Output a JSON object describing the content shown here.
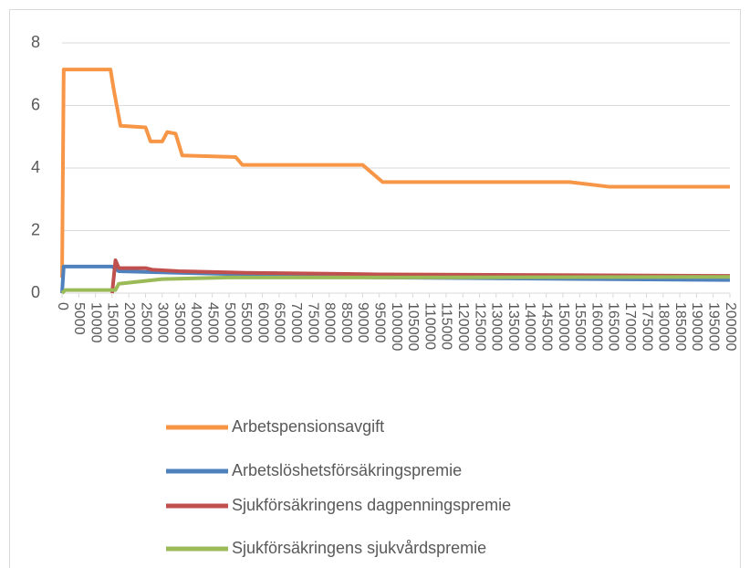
{
  "chart_data": {
    "type": "line",
    "xlim": [
      0,
      200000
    ],
    "xticks": [
      0,
      5000,
      10000,
      15000,
      20000,
      25000,
      30000,
      35000,
      40000,
      45000,
      50000,
      55000,
      60000,
      65000,
      70000,
      75000,
      80000,
      85000,
      90000,
      95000,
      100000,
      105000,
      110000,
      115000,
      120000,
      125000,
      130000,
      135000,
      140000,
      145000,
      150000,
      155000,
      160000,
      165000,
      170000,
      175000,
      180000,
      185000,
      190000,
      195000,
      200000
    ],
    "ylim": [
      0,
      8
    ],
    "yticks": [
      0,
      2,
      4,
      6,
      8
    ],
    "grid": true,
    "legend": "bottom",
    "series": [
      {
        "name": "Arbetspensionsavgift",
        "color": "#f79646",
        "x": [
          0,
          500,
          14500,
          15500,
          17500,
          25000,
          26500,
          30000,
          31500,
          34000,
          36000,
          52000,
          54000,
          90000,
          96000,
          152000,
          164000,
          200000
        ],
        "values": [
          0.5,
          7.15,
          7.15,
          6.5,
          5.35,
          5.3,
          4.85,
          4.85,
          5.15,
          5.1,
          4.4,
          4.35,
          4.1,
          4.1,
          3.55,
          3.55,
          3.4,
          3.4
        ]
      },
      {
        "name": "Arbetslöshetsförsäkringspremie",
        "color": "#4f81bd",
        "x": [
          0,
          500,
          15000,
          17000,
          35000,
          95000,
          160000,
          200000
        ],
        "values": [
          0,
          0.85,
          0.85,
          0.7,
          0.65,
          0.5,
          0.45,
          0.42
        ]
      },
      {
        "name": "Sjukförsäkringens dagpenningspremie",
        "color": "#c0504d",
        "x": [
          15000,
          16000,
          17000,
          25000,
          27000,
          35000,
          55000,
          95000,
          200000
        ],
        "values": [
          0,
          1.05,
          0.8,
          0.8,
          0.75,
          0.7,
          0.65,
          0.6,
          0.55
        ]
      },
      {
        "name": "Sjukförsäkringens sjukvårdspremie",
        "color": "#9bbb59",
        "x": [
          0,
          1000,
          16000,
          17000,
          30000,
          50000,
          95000,
          200000
        ],
        "values": [
          0,
          0.1,
          0.1,
          0.3,
          0.45,
          0.5,
          0.5,
          0.52
        ]
      }
    ]
  }
}
